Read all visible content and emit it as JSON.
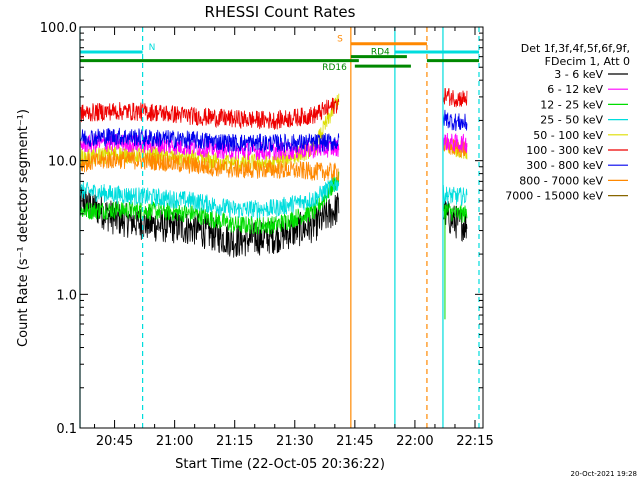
{
  "chart_data": {
    "type": "line",
    "title": "RHESSI Count Rates",
    "xlabel": "Start Time (22-Oct-05 20:36:22)",
    "ylabel": "Count Rate (s⁻¹ detector segment⁻¹)",
    "yscale": "log",
    "ylim": [
      0.1,
      100
    ],
    "xlim": [
      "20:36:22",
      "22:17:00"
    ],
    "x_ticks": [
      "20:45",
      "21:00",
      "21:15",
      "21:30",
      "21:45",
      "22:00",
      "22:15"
    ],
    "y_ticks": [
      "0.1",
      "1.0",
      "10.0",
      "100.0"
    ],
    "legend": {
      "placement": "right",
      "header": [
        "Det 1f,3f,4f,5f,6f,9f,",
        "FDecim 1, Att 0"
      ],
      "entries": [
        {
          "name": "3 - 6 keV",
          "color": "#000000"
        },
        {
          "name": "6 - 12 keV",
          "color": "#ff00ff"
        },
        {
          "name": "12 - 25 keV",
          "color": "#00dd00"
        },
        {
          "name": "25 - 50 keV",
          "color": "#00dddd"
        },
        {
          "name": "50 - 100 keV",
          "color": "#dddd00"
        },
        {
          "name": "100 - 300 keV",
          "color": "#ee0000"
        },
        {
          "name": "300 - 800 keV",
          "color": "#0000ee"
        },
        {
          "name": "800 - 7000 keV",
          "color": "#ff8800"
        },
        {
          "name": "7000 - 15000 keV",
          "color": "#886600"
        }
      ]
    },
    "series": [
      {
        "name": "3 - 6 keV",
        "color": "#000000",
        "pre": {
          "x": [
            "20:36",
            "20:45",
            "20:55",
            "21:05",
            "21:15",
            "21:25",
            "21:35",
            "21:41"
          ],
          "y": [
            5.2,
            3.7,
            3.3,
            3.1,
            2.5,
            2.7,
            3.3,
            4.5
          ]
        },
        "post": {
          "x": [
            "22:07",
            "22:10",
            "22:13"
          ],
          "y": [
            4.0,
            3.5,
            3.3
          ]
        }
      },
      {
        "name": "12 - 25 keV",
        "color": "#00dd00",
        "pre": {
          "x": [
            "20:36",
            "20:45",
            "20:55",
            "21:05",
            "21:15",
            "21:25",
            "21:35",
            "21:41"
          ],
          "y": [
            4.2,
            4.3,
            4.2,
            4.0,
            3.3,
            3.3,
            4.2,
            7.5
          ]
        },
        "post": {
          "x": [
            "22:07",
            "22:10",
            "22:13"
          ],
          "y": [
            4.4,
            4.0,
            4.0
          ]
        }
      },
      {
        "name": "25 - 50 keV",
        "color": "#00dddd",
        "pre": {
          "x": [
            "20:36",
            "20:45",
            "20:55",
            "21:05",
            "21:15",
            "21:25",
            "21:35",
            "21:41"
          ],
          "y": [
            6.0,
            5.6,
            5.3,
            5.0,
            4.3,
            4.4,
            5.2,
            7.0
          ]
        },
        "post": {
          "x": [
            "22:07",
            "22:10",
            "22:13"
          ],
          "y": [
            5.6,
            5.4,
            5.4
          ]
        }
      },
      {
        "name": "50 - 100 keV",
        "color": "#dddd00",
        "pre": {
          "x": [
            "20:36",
            "20:45",
            "20:55",
            "21:05",
            "21:15",
            "21:25",
            "21:35",
            "21:41"
          ],
          "y": [
            10.5,
            11.2,
            11.0,
            10.2,
            9.6,
            9.6,
            12.5,
            30.0
          ]
        },
        "post": {
          "x": [
            "22:07",
            "22:10",
            "22:13"
          ],
          "y": [
            13.0,
            12.5,
            12.0
          ]
        }
      },
      {
        "name": "800 - 7000 keV",
        "color": "#ff8800",
        "pre": {
          "x": [
            "20:36",
            "20:45",
            "20:55",
            "21:05",
            "21:15",
            "21:25",
            "21:35",
            "21:41"
          ],
          "y": [
            9.5,
            10.2,
            9.9,
            9.2,
            8.6,
            8.6,
            8.3,
            8.2
          ]
        },
        "post": {
          "x": [
            "22:07",
            "22:10",
            "22:13"
          ],
          "y": [
            13.0,
            12.5,
            12.2
          ]
        }
      },
      {
        "name": "6 - 12 keV",
        "color": "#ff00ff",
        "pre": {
          "x": [
            "20:36",
            "20:45",
            "20:55",
            "21:05",
            "21:15",
            "21:25",
            "21:35",
            "21:41"
          ],
          "y": [
            13.2,
            13.6,
            13.2,
            12.6,
            11.9,
            11.8,
            12.2,
            12.5
          ]
        },
        "post": {
          "x": [
            "22:07",
            "22:10",
            "22:13"
          ],
          "y": [
            14.0,
            13.5,
            13.5
          ]
        }
      },
      {
        "name": "300 - 800 keV",
        "color": "#0000ee",
        "pre": {
          "x": [
            "20:36",
            "20:45",
            "20:55",
            "21:05",
            "21:15",
            "21:25",
            "21:35",
            "21:41"
          ],
          "y": [
            14.8,
            15.2,
            14.7,
            14.2,
            13.6,
            13.5,
            13.6,
            13.8
          ]
        },
        "post": {
          "x": [
            "22:07",
            "22:10",
            "22:13"
          ],
          "y": [
            21.0,
            19.5,
            19.0
          ]
        }
      },
      {
        "name": "100 - 300 keV",
        "color": "#ee0000",
        "pre": {
          "x": [
            "20:36",
            "20:45",
            "20:55",
            "21:05",
            "21:15",
            "21:25",
            "21:35",
            "21:41"
          ],
          "y": [
            22.5,
            23.5,
            23.0,
            21.5,
            20.5,
            20.0,
            22.0,
            27.0
          ]
        },
        "post": {
          "x": [
            "22:07",
            "22:10",
            "22:13"
          ],
          "y": [
            31.0,
            29.5,
            29.0
          ]
        }
      }
    ],
    "annotations": {
      "bars": [
        {
          "label": "N",
          "color": "#00dddd",
          "x0": "20:36:22",
          "x1": "20:52:00",
          "y": 65
        },
        {
          "label": "",
          "color": "#00dddd",
          "x0": "21:55:00",
          "x1": "22:16:00",
          "y": 65
        },
        {
          "label": "S",
          "color": "#ff8800",
          "x0": "21:44:00",
          "x1": "22:03:00",
          "y": 75
        },
        {
          "label": "",
          "color": "#008800",
          "x0": "20:36:22",
          "x1": "21:46:00",
          "y": 56
        },
        {
          "label": "RD4",
          "color": "#008800",
          "x0": "21:44:00",
          "x1": "21:58:00",
          "y": 60
        },
        {
          "label": "",
          "color": "#008800",
          "x0": "22:03:00",
          "x1": "22:16:00",
          "y": 56
        },
        {
          "label": "RD16",
          "color": "#008800",
          "x0": "21:45:00",
          "x1": "21:59:00",
          "y": 51
        }
      ],
      "vlines": [
        {
          "color": "#00dddd",
          "time": "20:36:22",
          "style": "solid"
        },
        {
          "color": "#00dddd",
          "time": "20:52:00",
          "style": "dashed"
        },
        {
          "color": "#ff8800",
          "time": "21:44:00",
          "style": "solid"
        },
        {
          "color": "#00dddd",
          "time": "21:55:00",
          "style": "solid"
        },
        {
          "color": "#ff8800",
          "time": "22:03:00",
          "style": "dashed"
        },
        {
          "color": "#00dddd",
          "time": "22:07:00",
          "style": "solid"
        },
        {
          "color": "#00dddd",
          "time": "22:16:00",
          "style": "dashed"
        }
      ]
    },
    "footer_timestamp": "20-Oct-2021 19:28"
  }
}
